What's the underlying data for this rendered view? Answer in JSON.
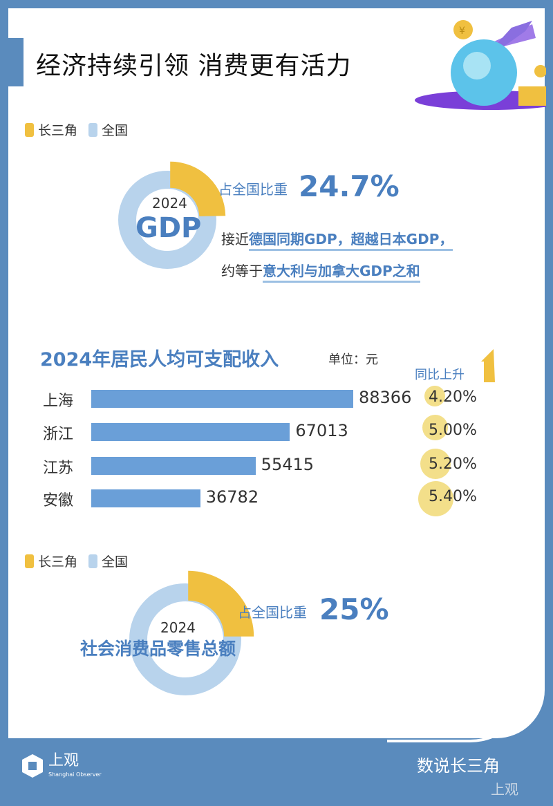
{
  "title": "经济持续引领 消费更有活力",
  "legend": {
    "yrd": "长三角",
    "national": "全国"
  },
  "colors": {
    "yrd": "#f0c040",
    "national": "#b8d3ec",
    "bar": "#6a9fd8",
    "bg": "#5a8bbd"
  },
  "gdp": {
    "year": "2024",
    "label": "GDP",
    "share_label": "占全国比重",
    "share": "24.7%",
    "share_value": 24.7,
    "line1_pre": "接近",
    "line1": "德国同期GDP，超越日本GDP，",
    "line2_pre": "约等于",
    "line2": "意大利与加拿大GDP之和"
  },
  "income": {
    "title": "2024年居民人均可支配收入",
    "unit": "单位：元",
    "growth_label": "同比上升",
    "rows": [
      {
        "name": "上海",
        "value": 88366,
        "value_text": "88366",
        "growth": "4.20%"
      },
      {
        "name": "浙江",
        "value": 67013,
        "value_text": "67013",
        "growth": "5.00%"
      },
      {
        "name": "江苏",
        "value": 55415,
        "value_text": "55415",
        "growth": "5.20%"
      },
      {
        "name": "安徽",
        "value": 36782,
        "value_text": "36782",
        "growth": "5.40%"
      }
    ]
  },
  "retail": {
    "year": "2024",
    "label": "社会消费品零售总额",
    "share_label": "占全国比重",
    "share": "25%",
    "share_value": 25
  },
  "footer": {
    "logo": "上观",
    "logo_en": "Shanghai Observer",
    "brand": "数说长三角",
    "watermark": "上观"
  }
}
